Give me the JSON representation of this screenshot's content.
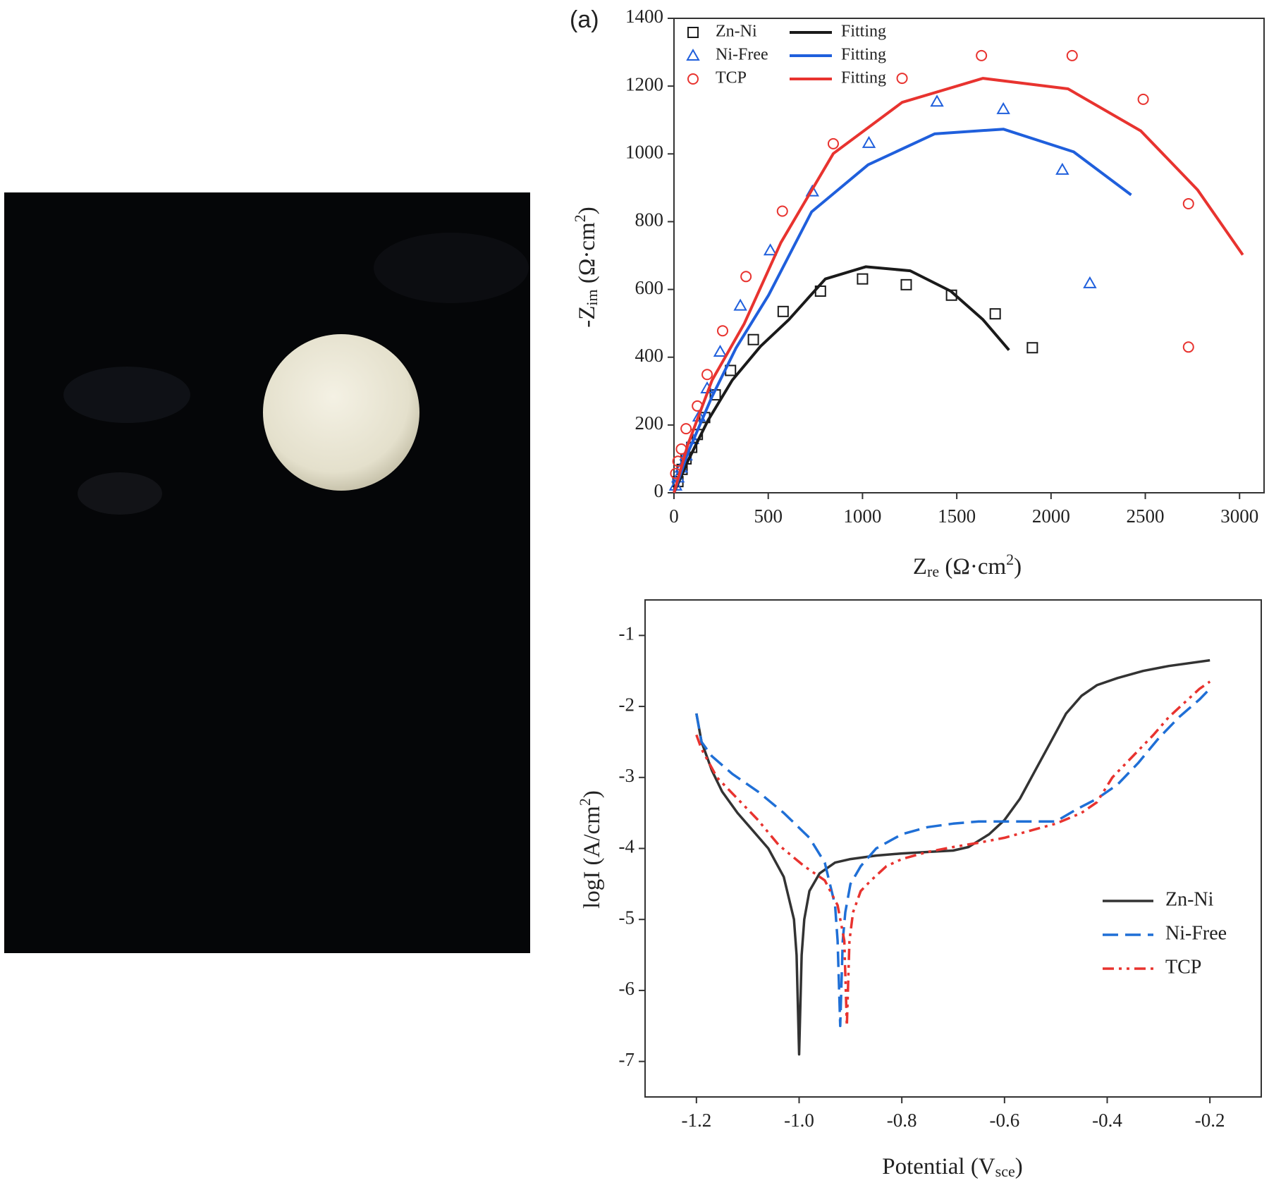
{
  "chart_data": [
    {
      "type": "scatter",
      "label": "(a)",
      "xlabel": [
        "Z",
        {
          "sub": "re"
        },
        " (Ω·cm",
        {
          "sup": "2"
        },
        ")"
      ],
      "ylabel": [
        "-Z",
        {
          "sub": "im"
        },
        " (Ω·cm",
        {
          "sup": "2"
        },
        ")"
      ],
      "xlim": [
        0,
        3130
      ],
      "ylim": [
        0,
        1400
      ],
      "xticks": [
        0,
        500,
        1000,
        1500,
        2000,
        2500,
        3000
      ],
      "yticks": [
        0,
        200,
        400,
        600,
        800,
        1000,
        1200,
        1400
      ],
      "legend": "upper left",
      "series": [
        {
          "name": "Zn-Ni",
          "color": "#1a1a1a",
          "mode": "markers",
          "marker": "square",
          "x": [
            21,
            43,
            64,
            94,
            124,
            163,
            219,
            300,
            421,
            579,
            777,
            1000,
            1232,
            1472,
            1704,
            1901
          ],
          "values": [
            33,
            69,
            100,
            134,
            172,
            222,
            289,
            361,
            452,
            535,
            595,
            631,
            614,
            583,
            528,
            428
          ]
        },
        {
          "name": "Ni-Free",
          "color": "#1f5fdc",
          "mode": "markers",
          "marker": "triangle",
          "x": [
            9,
            21,
            39,
            64,
            99,
            133,
            176,
            245,
            352,
            511,
            734,
            1034,
            1395,
            1747,
            2060,
            2206
          ],
          "values": [
            21,
            45,
            74,
            110,
            158,
            225,
            308,
            416,
            552,
            715,
            889,
            1032,
            1154,
            1132,
            953,
            618
          ]
        },
        {
          "name": "TCP",
          "color": "#e8332f",
          "mode": "markers",
          "marker": "circle",
          "x": [
            9,
            21,
            39,
            64,
            124,
            176,
            258,
            382,
            575,
            845,
            1210,
            1631,
            2112,
            2489,
            2729,
            2729
          ],
          "values": [
            57,
            93,
            129,
            189,
            256,
            349,
            478,
            638,
            831,
            1030,
            1223,
            1290,
            1290,
            1161,
            853,
            430
          ]
        },
        {
          "name": "Fitting",
          "color": "#1a1a1a",
          "mode": "line",
          "x": [
            0,
            73,
            180,
            309,
            459,
            609,
            803,
            1017,
            1253,
            1468,
            1639,
            1777
          ],
          "values": [
            0,
            93,
            213,
            332,
            432,
            511,
            631,
            667,
            655,
            595,
            511,
            421
          ]
        },
        {
          "name": "Fitting",
          "color": "#1f5fdc",
          "mode": "line",
          "x": [
            0,
            73,
            202,
            330,
            502,
            730,
            1030,
            1382,
            1747,
            2120,
            2425
          ],
          "values": [
            0,
            117,
            284,
            428,
            583,
            829,
            968,
            1059,
            1073,
            1006,
            879
          ]
        },
        {
          "name": "Fitting",
          "color": "#e8332f",
          "mode": "line",
          "x": [
            0,
            73,
            202,
            373,
            567,
            845,
            1210,
            1639,
            2090,
            2476,
            2777,
            3017
          ],
          "values": [
            0,
            141,
            332,
            499,
            738,
            1001,
            1152,
            1223,
            1192,
            1068,
            894,
            702
          ]
        }
      ]
    },
    {
      "type": "line",
      "xlabel": [
        "Potential (V",
        {
          "sub": "sce"
        },
        ")"
      ],
      "ylabel": [
        "logI (A/cm",
        {
          "sup": "2"
        },
        ")"
      ],
      "xlim": [
        -1.3,
        -0.1
      ],
      "ylim": [
        -7.5,
        -0.5
      ],
      "xticks": [
        -1.2,
        {
          "value": -1,
          "label": "-1.0"
        },
        -0.8,
        -0.6,
        -0.4,
        -0.2
      ],
      "yticks": [
        -1,
        -2,
        -3,
        -4,
        -5,
        -6,
        -7
      ],
      "legend": "lower right",
      "series": [
        {
          "name": "Zn-Ni",
          "color": "#333333",
          "dash": "solid",
          "x": [
            -1.2,
            -1.19,
            -1.17,
            -1.15,
            -1.12,
            -1.09,
            -1.06,
            -1.03,
            -1.01,
            -1.005,
            -1.0,
            -0.995,
            -0.99,
            -0.98,
            -0.96,
            -0.93,
            -0.9,
            -0.85,
            -0.8,
            -0.75,
            -0.7,
            -0.67,
            -0.63,
            -0.6,
            -0.57,
            -0.54,
            -0.51,
            -0.48,
            -0.45,
            -0.42,
            -0.38,
            -0.33,
            -0.28,
            -0.2
          ],
          "values": [
            -2.1,
            -2.5,
            -2.9,
            -3.2,
            -3.5,
            -3.75,
            -4.0,
            -4.4,
            -5.0,
            -5.5,
            -6.9,
            -5.5,
            -5.0,
            -4.6,
            -4.35,
            -4.2,
            -4.15,
            -4.1,
            -4.07,
            -4.05,
            -4.03,
            -3.98,
            -3.8,
            -3.6,
            -3.3,
            -2.9,
            -2.5,
            -2.1,
            -1.85,
            -1.7,
            -1.6,
            -1.5,
            -1.43,
            -1.35
          ]
        },
        {
          "name": "Ni-Free",
          "color": "#1f6fd6",
          "dash": "dashed",
          "x": [
            -1.2,
            -1.19,
            -1.17,
            -1.13,
            -1.08,
            -1.03,
            -0.98,
            -0.95,
            -0.93,
            -0.925,
            -0.92,
            -0.915,
            -0.91,
            -0.9,
            -0.88,
            -0.85,
            -0.8,
            -0.75,
            -0.7,
            -0.65,
            -0.6,
            -0.55,
            -0.5,
            -0.46,
            -0.42,
            -0.38,
            -0.34,
            -0.3,
            -0.26,
            -0.22,
            -0.2
          ],
          "values": [
            -2.1,
            -2.5,
            -2.7,
            -2.95,
            -3.2,
            -3.5,
            -3.85,
            -4.2,
            -4.8,
            -5.3,
            -6.5,
            -5.3,
            -4.9,
            -4.5,
            -4.25,
            -4.0,
            -3.8,
            -3.7,
            -3.65,
            -3.62,
            -3.62,
            -3.62,
            -3.62,
            -3.45,
            -3.3,
            -3.1,
            -2.8,
            -2.45,
            -2.15,
            -1.9,
            -1.75
          ]
        },
        {
          "name": "TCP",
          "color": "#e8332f",
          "dash": "dashdotdot",
          "x": [
            -1.2,
            -1.19,
            -1.16,
            -1.12,
            -1.08,
            -1.04,
            -0.99,
            -0.95,
            -0.925,
            -0.912,
            -0.907,
            -0.902,
            -0.895,
            -0.88,
            -0.86,
            -0.83,
            -0.8,
            -0.75,
            -0.7,
            -0.65,
            -0.6,
            -0.55,
            -0.5,
            -0.45,
            -0.42,
            -0.39,
            -0.35,
            -0.31,
            -0.28,
            -0.25,
            -0.22,
            -0.2
          ],
          "values": [
            -2.4,
            -2.6,
            -3.0,
            -3.3,
            -3.6,
            -3.95,
            -4.25,
            -4.45,
            -4.8,
            -5.3,
            -6.5,
            -5.3,
            -4.9,
            -4.6,
            -4.45,
            -4.25,
            -4.15,
            -4.05,
            -3.98,
            -3.92,
            -3.85,
            -3.75,
            -3.65,
            -3.5,
            -3.35,
            -3.0,
            -2.7,
            -2.4,
            -2.15,
            -1.95,
            -1.75,
            -1.65
          ]
        }
      ]
    }
  ]
}
